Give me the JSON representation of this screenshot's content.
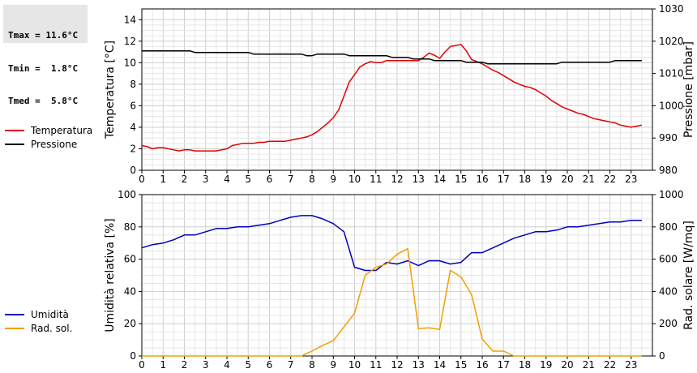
{
  "stats": {
    "lines": [
      "Tmax = 11.6°C",
      "Tmin =  1.8°C",
      "Tmed =  5.8°C"
    ]
  },
  "legend_top": [
    {
      "label": "Temperatura",
      "color": "#e00000"
    },
    {
      "label": "Pressione",
      "color": "#000000"
    }
  ],
  "legend_bottom": [
    {
      "label": "Umidità",
      "color": "#0000c0"
    },
    {
      "label": "Rad. sol.",
      "color": "#f0a000"
    }
  ],
  "chart_data": [
    {
      "type": "line",
      "grid": true,
      "xlim": [
        0,
        24
      ],
      "x_ticks": [
        0,
        1,
        2,
        3,
        4,
        5,
        6,
        7,
        8,
        9,
        10,
        11,
        12,
        13,
        14,
        15,
        16,
        17,
        18,
        19,
        20,
        21,
        22,
        23
      ],
      "left_axis": {
        "label": "Temperatura [°C]",
        "ylim": [
          0,
          15
        ],
        "ticks": [
          0,
          2,
          4,
          6,
          8,
          10,
          12,
          14
        ]
      },
      "right_axis": {
        "label": "Pressione [mbar]",
        "ylim": [
          980,
          1030
        ],
        "ticks": [
          980,
          990,
          1000,
          1010,
          1020,
          1030
        ]
      },
      "series": [
        {
          "name": "Temperatura",
          "axis": "left",
          "color": "#e00000",
          "x": [
            0,
            0.25,
            0.5,
            0.75,
            1,
            1.25,
            1.5,
            1.75,
            2,
            2.25,
            2.5,
            2.75,
            3,
            3.25,
            3.5,
            3.75,
            4,
            4.25,
            4.5,
            4.75,
            5,
            5.25,
            5.5,
            5.75,
            6,
            6.25,
            6.5,
            6.75,
            7,
            7.25,
            7.5,
            7.75,
            8,
            8.25,
            8.5,
            8.75,
            9,
            9.25,
            9.5,
            9.75,
            10,
            10.25,
            10.5,
            10.75,
            11,
            11.25,
            11.5,
            11.75,
            12,
            12.25,
            12.5,
            12.75,
            13,
            13.25,
            13.5,
            13.75,
            14,
            14.25,
            14.5,
            14.75,
            15,
            15.25,
            15.5,
            15.75,
            16,
            16.25,
            16.5,
            16.75,
            17,
            17.25,
            17.5,
            17.75,
            18,
            18.25,
            18.5,
            18.75,
            19,
            19.25,
            19.5,
            19.75,
            20,
            20.25,
            20.5,
            20.75,
            21,
            21.25,
            21.5,
            21.75,
            22,
            22.25,
            22.5,
            22.75,
            23,
            23.25,
            23.5
          ],
          "y": [
            2.3,
            2.2,
            2.0,
            2.1,
            2.1,
            2.0,
            1.9,
            1.8,
            1.9,
            1.9,
            1.8,
            1.8,
            1.8,
            1.8,
            1.8,
            1.9,
            2.0,
            2.3,
            2.4,
            2.5,
            2.5,
            2.5,
            2.6,
            2.6,
            2.7,
            2.7,
            2.7,
            2.7,
            2.8,
            2.9,
            3.0,
            3.1,
            3.3,
            3.6,
            4.0,
            4.4,
            4.9,
            5.6,
            6.9,
            8.2,
            8.9,
            9.6,
            9.9,
            10.1,
            10.0,
            10.0,
            10.2,
            10.2,
            10.2,
            10.2,
            10.2,
            10.2,
            10.2,
            10.5,
            10.9,
            10.7,
            10.4,
            11.0,
            11.5,
            11.6,
            11.7,
            11.1,
            10.3,
            10.1,
            9.9,
            9.6,
            9.3,
            9.1,
            8.8,
            8.5,
            8.2,
            8.0,
            7.8,
            7.7,
            7.5,
            7.2,
            6.9,
            6.5,
            6.2,
            5.9,
            5.7,
            5.5,
            5.3,
            5.2,
            5.0,
            4.8,
            4.7,
            4.6,
            4.5,
            4.4,
            4.2,
            4.1,
            4.0,
            4.1,
            4.2
          ]
        },
        {
          "name": "Pressione",
          "axis": "right",
          "color": "#000000",
          "x": [
            0,
            0.5,
            1,
            1.5,
            2,
            2.25,
            2.5,
            2.75,
            3,
            3.5,
            4,
            4.5,
            5,
            5.25,
            5.5,
            5.75,
            6,
            6.5,
            7,
            7.5,
            7.75,
            8,
            8.25,
            8.5,
            9,
            9.5,
            9.75,
            10,
            10.5,
            11,
            11.5,
            11.75,
            12,
            12.5,
            12.75,
            13,
            13.5,
            13.75,
            14,
            14.5,
            15,
            15.25,
            15.5,
            16,
            16.25,
            16.5,
            17,
            17.5,
            18,
            18.5,
            19,
            19.5,
            19.75,
            20,
            20.5,
            21,
            21.5,
            22,
            22.25,
            22.5,
            23,
            23.5
          ],
          "y": [
            1017.0,
            1017.0,
            1017.0,
            1017.0,
            1017.0,
            1017.0,
            1016.5,
            1016.5,
            1016.5,
            1016.5,
            1016.5,
            1016.5,
            1016.5,
            1016.0,
            1016.0,
            1016.0,
            1016.0,
            1016.0,
            1016.0,
            1016.0,
            1015.5,
            1015.5,
            1016.0,
            1016.0,
            1016.0,
            1016.0,
            1015.5,
            1015.5,
            1015.5,
            1015.5,
            1015.5,
            1015.0,
            1015.0,
            1015.0,
            1014.5,
            1014.5,
            1014.5,
            1014.0,
            1014.0,
            1014.0,
            1014.0,
            1013.5,
            1013.5,
            1013.5,
            1013.0,
            1013.0,
            1013.0,
            1013.0,
            1013.0,
            1013.0,
            1013.0,
            1013.0,
            1013.5,
            1013.5,
            1013.5,
            1013.5,
            1013.5,
            1013.5,
            1014.0,
            1014.0,
            1014.0,
            1014.0
          ]
        }
      ]
    },
    {
      "type": "line",
      "grid": true,
      "xlim": [
        0,
        24
      ],
      "x_ticks": [
        0,
        1,
        2,
        3,
        4,
        5,
        6,
        7,
        8,
        9,
        10,
        11,
        12,
        13,
        14,
        15,
        16,
        17,
        18,
        19,
        20,
        21,
        22,
        23
      ],
      "left_axis": {
        "label": "Umidità relativa [%]",
        "ylim": [
          0,
          100
        ],
        "ticks": [
          0,
          20,
          40,
          60,
          80,
          100
        ]
      },
      "right_axis": {
        "label": "Rad. solare [W/mq]",
        "ylim": [
          0,
          1000
        ],
        "ticks": [
          0,
          200,
          400,
          600,
          800,
          1000
        ]
      },
      "series": [
        {
          "name": "Umidità",
          "axis": "left",
          "color": "#0000c0",
          "x": [
            0,
            0.5,
            1,
            1.5,
            2,
            2.5,
            3,
            3.5,
            4,
            4.5,
            5,
            5.5,
            6,
            6.5,
            7,
            7.5,
            8,
            8.5,
            9,
            9.5,
            10,
            10.5,
            11,
            11.5,
            12,
            12.5,
            13,
            13.5,
            14,
            14.5,
            15,
            15.5,
            16,
            16.5,
            17,
            17.5,
            18,
            18.5,
            19,
            19.5,
            20,
            20.5,
            21,
            21.5,
            22,
            22.5,
            23,
            23.5
          ],
          "y": [
            67,
            69,
            70,
            72,
            75,
            75,
            77,
            79,
            79,
            80,
            80,
            81,
            82,
            84,
            86,
            87,
            87,
            85,
            82,
            77,
            55,
            53,
            53,
            58,
            57,
            59,
            56,
            59,
            59,
            57,
            58,
            64,
            64,
            67,
            70,
            73,
            75,
            77,
            77,
            78,
            80,
            80,
            81,
            82,
            83,
            83,
            84,
            84
          ]
        },
        {
          "name": "Rad. sol.",
          "axis": "right",
          "color": "#f0a000",
          "x": [
            0,
            0.5,
            1,
            1.5,
            2,
            2.5,
            3,
            3.5,
            4,
            4.5,
            5,
            5.5,
            6,
            6.5,
            7,
            7.5,
            8,
            8.5,
            9,
            9.5,
            10,
            10.5,
            11,
            11.5,
            12,
            12.5,
            13,
            13.5,
            14,
            14.5,
            15,
            15.5,
            16,
            16.5,
            17,
            17.5,
            18,
            18.5,
            19,
            19.5,
            20,
            20.5,
            21,
            21.5,
            22,
            22.5,
            23,
            23.5
          ],
          "y": [
            0,
            0,
            0,
            0,
            0,
            0,
            0,
            0,
            0,
            0,
            0,
            0,
            0,
            0,
            0,
            0,
            30,
            65,
            95,
            180,
            265,
            500,
            550,
            570,
            630,
            665,
            170,
            175,
            165,
            530,
            490,
            380,
            105,
            30,
            30,
            0,
            0,
            0,
            0,
            0,
            0,
            0,
            0,
            0,
            0,
            0,
            0,
            0
          ]
        }
      ]
    }
  ]
}
